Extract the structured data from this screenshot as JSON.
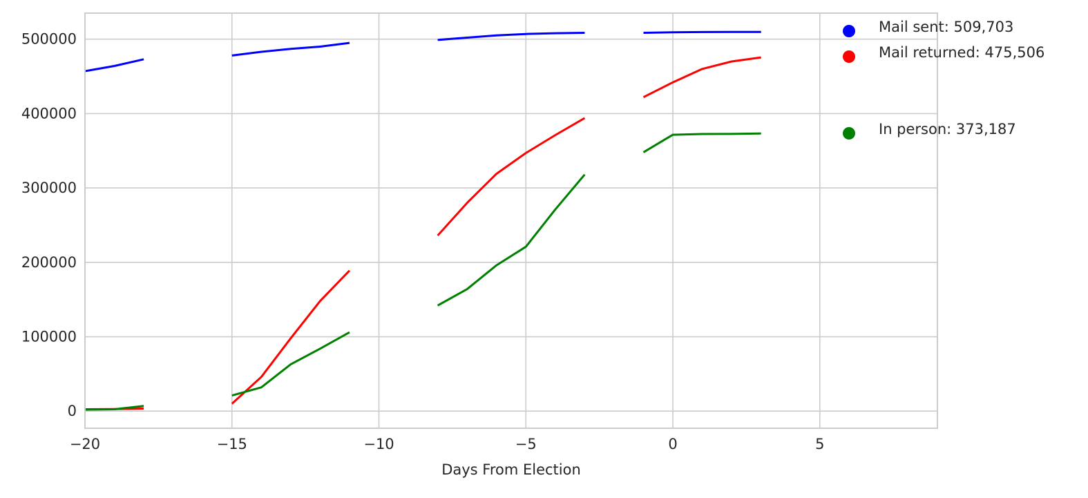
{
  "chart_data": {
    "type": "line",
    "title": "",
    "xlabel": "Days From Election",
    "ylabel": "",
    "xlim": [
      -20,
      9
    ],
    "ylim": [
      -23000,
      535000
    ],
    "x_ticks": [
      -20,
      -15,
      -10,
      -5,
      0,
      5
    ],
    "x_tick_labels": [
      "−20",
      "−15",
      "−10",
      "−5",
      "0",
      "5"
    ],
    "y_ticks": [
      0,
      100000,
      200000,
      300000,
      400000,
      500000
    ],
    "y_tick_labels": [
      "0",
      "100000",
      "200000",
      "300000",
      "400000",
      "500000"
    ],
    "grid": true,
    "legend_position": "top-right",
    "series": [
      {
        "key": "mail_sent",
        "color": "#0000ff",
        "segments": [
          [
            [
              -20,
              457000
            ],
            [
              -19,
              464000
            ],
            [
              -18,
              473000
            ]
          ],
          [
            [
              -15,
              478000
            ],
            [
              -14,
              483000
            ],
            [
              -13,
              487000
            ],
            [
              -12,
              490000
            ],
            [
              -11,
              495000
            ]
          ],
          [
            [
              -8,
              499000
            ],
            [
              -7,
              502000
            ],
            [
              -6,
              505000
            ],
            [
              -5,
              507000
            ],
            [
              -4,
              508000
            ],
            [
              -3,
              508500
            ]
          ],
          [
            [
              -1,
              508500
            ],
            [
              0,
              509200
            ],
            [
              1,
              509600
            ],
            [
              2,
              509700
            ],
            [
              3,
              509703
            ]
          ]
        ]
      },
      {
        "key": "mail_returned",
        "color": "#ff0000",
        "segments": [
          [
            [
              -20,
              2500
            ],
            [
              -19,
              2800
            ],
            [
              -18,
              3500
            ]
          ],
          [
            [
              -15,
              10000
            ],
            [
              -14,
              46000
            ],
            [
              -13,
              98000
            ],
            [
              -12,
              148000
            ],
            [
              -11,
              189000
            ]
          ],
          [
            [
              -8,
              236000
            ],
            [
              -7,
              280000
            ],
            [
              -6,
              319000
            ],
            [
              -5,
              347000
            ],
            [
              -4,
              371000
            ],
            [
              -3,
              394000
            ]
          ],
          [
            [
              -1,
              422000
            ],
            [
              0,
              442000
            ],
            [
              1,
              460000
            ],
            [
              2,
              470000
            ],
            [
              3,
              475506
            ]
          ]
        ]
      },
      {
        "key": "in_person",
        "color": "#008000",
        "segments": [
          [
            [
              -20,
              2000
            ],
            [
              -19,
              2500
            ],
            [
              -18,
              7000
            ]
          ],
          [
            [
              -15,
              21000
            ],
            [
              -14,
              32000
            ],
            [
              -13,
              63000
            ],
            [
              -12,
              84000
            ],
            [
              -11,
              106000
            ]
          ],
          [
            [
              -8,
              142000
            ],
            [
              -7,
              164000
            ],
            [
              -6,
              196000
            ],
            [
              -5,
              221000
            ],
            [
              -4,
              271000
            ],
            [
              -3,
              318000
            ]
          ],
          [
            [
              -1,
              348000
            ],
            [
              0,
              371500
            ],
            [
              1,
              372500
            ],
            [
              2,
              372600
            ],
            [
              3,
              373187
            ]
          ]
        ]
      }
    ],
    "legend": [
      {
        "key": "mail_sent",
        "label": "Mail sent: 509,703",
        "color": "#0000ff"
      },
      {
        "key": "mail_returned",
        "label": "Mail returned: 475,506",
        "color": "#ff0000"
      },
      {
        "key": "in_person",
        "label": "In person: 373,187",
        "color": "#008000"
      }
    ]
  }
}
